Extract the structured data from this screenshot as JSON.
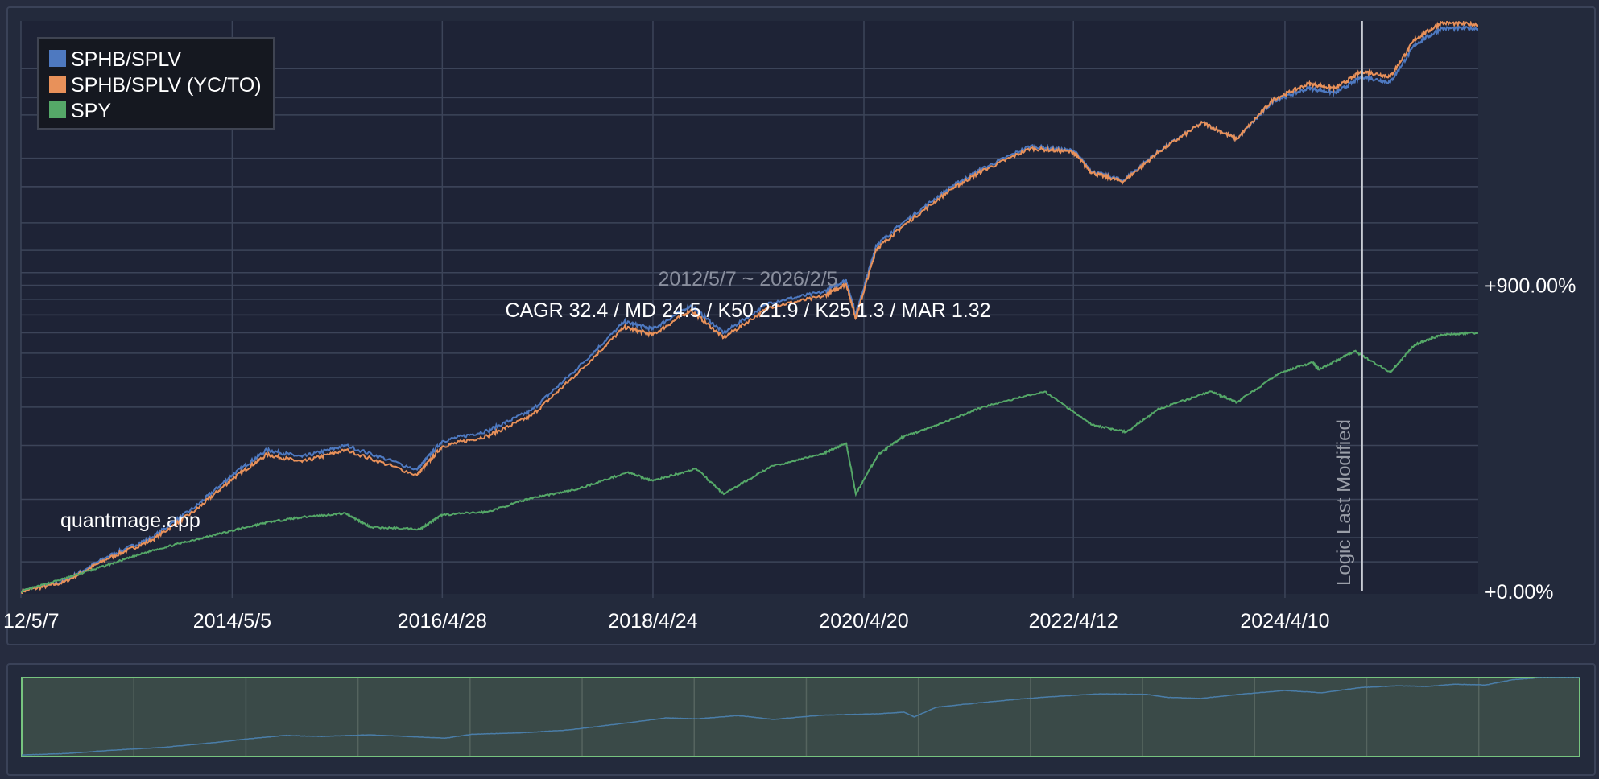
{
  "chart_data": {
    "type": "line",
    "x_range": [
      "2012/5/7",
      "2026/2/5"
    ],
    "y_scale": "log",
    "x_ticks": [
      "12/5/7",
      "2014/5/5",
      "2016/4/28",
      "2018/4/24",
      "2020/4/20",
      "2022/4/12",
      "2024/4/10"
    ],
    "y_ticks": [
      {
        "value": 0,
        "label": "+0.00%"
      },
      {
        "value": 900,
        "label": "+900.00%"
      }
    ],
    "legend": {
      "placement": "top-left",
      "entries": [
        {
          "name": "SPHB/SPLV",
          "color": "#4e79c0"
        },
        {
          "name": "SPHB/SPLV (YC/TO)",
          "color": "#e8915a"
        },
        {
          "name": "SPY",
          "color": "#55a868"
        }
      ]
    },
    "annotations": {
      "range": "2012/5/7 ~ 2026/2/5",
      "stats": "CAGR 32.4 / MD 24.5 / K50 21.9 / K25 1.3 / MAR 1.32",
      "watermark": "quantmage.app",
      "event_label": "Logic Last Modified",
      "event_date": "2025/1/1"
    },
    "grid": true,
    "series": [
      {
        "name": "SPHB/SPLV",
        "color": "#4e79c0",
        "points": [
          [
            "2012-05-07",
            0
          ],
          [
            "2012-10-01",
            8
          ],
          [
            "2013-03-01",
            30
          ],
          [
            "2013-08-01",
            50
          ],
          [
            "2014-01-01",
            90
          ],
          [
            "2014-05-05",
            140
          ],
          [
            "2014-09-01",
            190
          ],
          [
            "2015-01-01",
            175
          ],
          [
            "2015-06-01",
            200
          ],
          [
            "2016-02-01",
            150
          ],
          [
            "2016-04-28",
            210
          ],
          [
            "2016-10-01",
            235
          ],
          [
            "2017-03-01",
            290
          ],
          [
            "2017-08-01",
            430
          ],
          [
            "2018-01-15",
            660
          ],
          [
            "2018-04-24",
            620
          ],
          [
            "2018-09-01",
            760
          ],
          [
            "2018-12-24",
            600
          ],
          [
            "2019-06-01",
            780
          ],
          [
            "2019-12-01",
            850
          ],
          [
            "2020-02-19",
            940
          ],
          [
            "2020-03-23",
            700
          ],
          [
            "2020-06-01",
            1250
          ],
          [
            "2020-09-01",
            1500
          ],
          [
            "2021-02-15",
            2000
          ],
          [
            "2021-06-01",
            2300
          ],
          [
            "2021-11-15",
            2750
          ],
          [
            "2022-04-12",
            2650
          ],
          [
            "2022-06-15",
            2250
          ],
          [
            "2022-10-01",
            2100
          ],
          [
            "2023-02-01",
            2650
          ],
          [
            "2023-07-01",
            3300
          ],
          [
            "2023-10-27",
            2900
          ],
          [
            "2024-03-01",
            3900
          ],
          [
            "2024-07-01",
            4300
          ],
          [
            "2024-10-01",
            4150
          ],
          [
            "2025-01-01",
            4700
          ],
          [
            "2025-04-08",
            4500
          ],
          [
            "2025-07-01",
            6000
          ],
          [
            "2025-10-01",
            6800
          ],
          [
            "2026-02-05",
            6800
          ]
        ]
      },
      {
        "name": "SPHB/SPLV (YC/TO)",
        "color": "#e8915a",
        "points": [
          [
            "2012-05-07",
            0
          ],
          [
            "2012-10-01",
            7
          ],
          [
            "2013-03-01",
            28
          ],
          [
            "2013-08-01",
            47
          ],
          [
            "2014-01-01",
            85
          ],
          [
            "2014-05-05",
            133
          ],
          [
            "2014-09-01",
            180
          ],
          [
            "2015-01-01",
            165
          ],
          [
            "2015-06-01",
            190
          ],
          [
            "2016-02-01",
            140
          ],
          [
            "2016-04-28",
            198
          ],
          [
            "2016-10-01",
            222
          ],
          [
            "2017-03-01",
            275
          ],
          [
            "2017-08-01",
            410
          ],
          [
            "2018-01-15",
            630
          ],
          [
            "2018-04-24",
            590
          ],
          [
            "2018-09-01",
            730
          ],
          [
            "2018-12-24",
            575
          ],
          [
            "2019-06-01",
            750
          ],
          [
            "2019-12-01",
            820
          ],
          [
            "2020-02-19",
            910
          ],
          [
            "2020-03-23",
            680
          ],
          [
            "2020-06-01",
            1210
          ],
          [
            "2020-09-01",
            1460
          ],
          [
            "2021-02-15",
            1960
          ],
          [
            "2021-06-01",
            2260
          ],
          [
            "2021-11-15",
            2700
          ],
          [
            "2022-04-12",
            2620
          ],
          [
            "2022-06-15",
            2230
          ],
          [
            "2022-10-01",
            2080
          ],
          [
            "2023-02-01",
            2630
          ],
          [
            "2023-07-01",
            3300
          ],
          [
            "2023-10-27",
            2900
          ],
          [
            "2024-03-01",
            3950
          ],
          [
            "2024-07-01",
            4450
          ],
          [
            "2024-10-01",
            4300
          ],
          [
            "2025-01-01",
            4900
          ],
          [
            "2025-04-08",
            4700
          ],
          [
            "2025-07-01",
            6250
          ],
          [
            "2025-10-01",
            7100
          ],
          [
            "2026-02-05",
            7000
          ]
        ]
      },
      {
        "name": "SPY",
        "color": "#55a868",
        "points": [
          [
            "2012-05-07",
            0
          ],
          [
            "2012-10-01",
            10
          ],
          [
            "2013-03-01",
            22
          ],
          [
            "2013-08-01",
            36
          ],
          [
            "2014-01-01",
            48
          ],
          [
            "2014-05-05",
            58
          ],
          [
            "2014-09-01",
            68
          ],
          [
            "2015-01-01",
            75
          ],
          [
            "2015-06-01",
            80
          ],
          [
            "2015-08-25",
            62
          ],
          [
            "2016-02-11",
            60
          ],
          [
            "2016-04-28",
            78
          ],
          [
            "2016-10-01",
            82
          ],
          [
            "2017-03-01",
            102
          ],
          [
            "2017-08-01",
            115
          ],
          [
            "2018-01-26",
            145
          ],
          [
            "2018-04-24",
            130
          ],
          [
            "2018-09-20",
            152
          ],
          [
            "2018-12-24",
            108
          ],
          [
            "2019-06-01",
            155
          ],
          [
            "2019-12-01",
            182
          ],
          [
            "2020-02-19",
            205
          ],
          [
            "2020-03-23",
            108
          ],
          [
            "2020-06-08",
            180
          ],
          [
            "2020-09-01",
            220
          ],
          [
            "2021-01-01",
            250
          ],
          [
            "2021-06-01",
            300
          ],
          [
            "2022-01-03",
            350
          ],
          [
            "2022-06-16",
            250
          ],
          [
            "2022-10-12",
            232
          ],
          [
            "2023-02-01",
            295
          ],
          [
            "2023-07-31",
            350
          ],
          [
            "2023-10-27",
            315
          ],
          [
            "2024-03-28",
            420
          ],
          [
            "2024-07-16",
            460
          ],
          [
            "2024-08-05",
            430
          ],
          [
            "2024-12-06",
            510
          ],
          [
            "2025-04-08",
            420
          ],
          [
            "2025-07-01",
            540
          ],
          [
            "2025-10-01",
            590
          ],
          [
            "2026-02-05",
            600
          ]
        ]
      }
    ],
    "navigator": {
      "frame_color": "#77c47f",
      "fill_color": "#3a4a48",
      "line_color": "#4a7da8"
    }
  }
}
